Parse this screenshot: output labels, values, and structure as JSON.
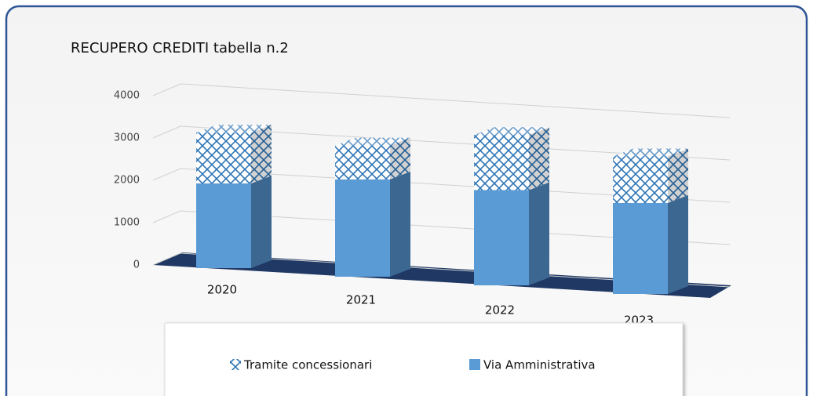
{
  "chart_data": {
    "type": "bar3d_stacked",
    "title": "RECUPERO CREDITI tabella n.2",
    "categories": [
      "2020",
      "2021",
      "2022",
      "2023"
    ],
    "series": [
      {
        "name": "Via Amministrativa",
        "color": "#5b9bd5",
        "values": [
          2000,
          2300,
          2250,
          2150
        ]
      },
      {
        "name": "Tramite concessionari",
        "color": "#2e75b6",
        "values": [
          1200,
          800,
          1300,
          1100
        ]
      }
    ],
    "ylim": [
      0,
      4000
    ],
    "yticks": [
      0,
      1000,
      2000,
      3000,
      4000
    ],
    "grid": true
  }
}
